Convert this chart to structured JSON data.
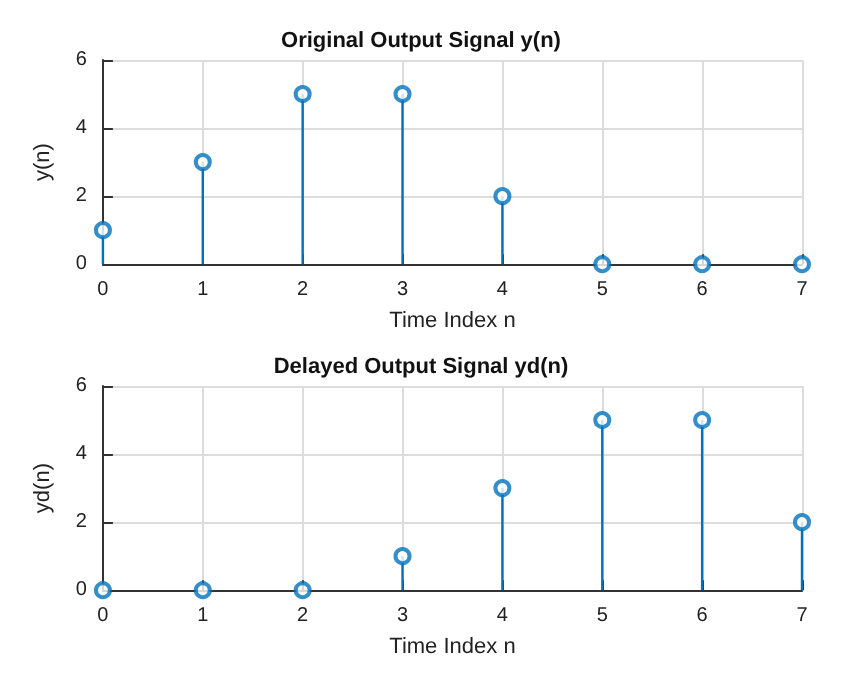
{
  "chart_data": [
    {
      "type": "lollipop",
      "title": "Original Output Signal y(n)",
      "xlabel": "Time Index n",
      "ylabel": "y(n)",
      "x": [
        0,
        1,
        2,
        3,
        4,
        5,
        6,
        7
      ],
      "values": [
        1,
        3,
        5,
        5,
        2,
        0,
        0,
        0
      ],
      "color": "#0072bd",
      "xlim": [
        0,
        7
      ],
      "xticks": [
        0,
        1,
        2,
        3,
        4,
        5,
        6,
        7
      ],
      "ylim": [
        0,
        6
      ],
      "yticks": [
        0,
        2,
        4,
        6
      ],
      "grid": true,
      "marker": "circle"
    },
    {
      "type": "lollipop",
      "title": "Delayed Output Signal yd(n)",
      "xlabel": "Time Index n",
      "ylabel": "yd(n)",
      "x": [
        0,
        1,
        2,
        3,
        4,
        5,
        6,
        7
      ],
      "values": [
        0,
        0,
        0,
        1,
        3,
        5,
        5,
        2
      ],
      "color": "#0072bd",
      "xlim": [
        0,
        7
      ],
      "xticks": [
        0,
        1,
        2,
        3,
        4,
        5,
        6,
        7
      ],
      "ylim": [
        0,
        6
      ],
      "yticks": [
        0,
        2,
        4,
        6
      ],
      "grid": true,
      "marker": "circle"
    }
  ]
}
